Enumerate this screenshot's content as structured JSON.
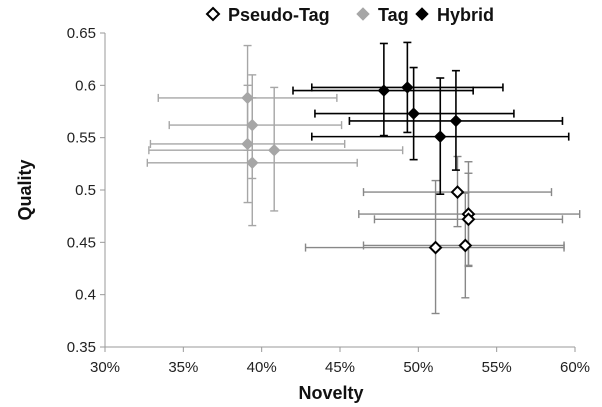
{
  "chart_data": {
    "type": "scatter",
    "xlabel": "Novelty",
    "ylabel": "Quality",
    "xlim": [
      0.3,
      0.6
    ],
    "ylim": [
      0.35,
      0.65
    ],
    "xticks": [
      0.3,
      0.35,
      0.4,
      0.45,
      0.5,
      0.55,
      0.6
    ],
    "xtick_labels": [
      "30%",
      "35%",
      "40%",
      "45%",
      "50%",
      "55%",
      "60%"
    ],
    "yticks": [
      0.35,
      0.4,
      0.45,
      0.5,
      0.55,
      0.6,
      0.65
    ],
    "ytick_labels": [
      "0.35",
      "0.4",
      "0.45",
      "0.5",
      "0.55",
      "0.6",
      "0.65"
    ],
    "grid": false,
    "legend_position": "top",
    "error_bars": true,
    "series": [
      {
        "name": "Pseudo-Tag",
        "marker": "open-diamond",
        "color": "#888888",
        "points": [
          {
            "x": 0.525,
            "y": 0.498,
            "xerr": [
              0.465,
              0.585
            ],
            "yerr": [
              0.465,
              0.532
            ]
          },
          {
            "x": 0.532,
            "y": 0.477,
            "xerr": [
              0.462,
              0.603
            ],
            "yerr": [
              0.428,
              0.527
            ]
          },
          {
            "x": 0.532,
            "y": 0.472,
            "xerr": [
              0.472,
              0.592
            ],
            "yerr": [
              0.427,
              0.516
            ]
          },
          {
            "x": 0.53,
            "y": 0.447,
            "xerr": [
              0.465,
              0.593
            ],
            "yerr": [
              0.397,
              0.497
            ]
          },
          {
            "x": 0.511,
            "y": 0.445,
            "xerr": [
              0.428,
              0.593
            ],
            "yerr": [
              0.382,
              0.509
            ]
          }
        ]
      },
      {
        "name": "Tag",
        "marker": "filled-diamond",
        "color": "#a6a6a6",
        "points": [
          {
            "x": 0.391,
            "y": 0.588,
            "xerr": [
              0.334,
              0.448
            ],
            "yerr": [
              0.538,
              0.638
            ]
          },
          {
            "x": 0.394,
            "y": 0.562,
            "xerr": [
              0.341,
              0.451
            ],
            "yerr": [
              0.511,
              0.61
            ]
          },
          {
            "x": 0.391,
            "y": 0.544,
            "xerr": [
              0.329,
              0.453
            ],
            "yerr": [
              0.488,
              0.6
            ]
          },
          {
            "x": 0.408,
            "y": 0.538,
            "xerr": [
              0.328,
              0.49
            ],
            "yerr": [
              0.48,
              0.598
            ]
          },
          {
            "x": 0.394,
            "y": 0.526,
            "xerr": [
              0.327,
              0.461
            ],
            "yerr": [
              0.466,
              0.588
            ]
          }
        ]
      },
      {
        "name": "Hybrid",
        "marker": "filled-diamond",
        "color": "#000000",
        "points": [
          {
            "x": 0.493,
            "y": 0.598,
            "xerr": [
              0.432,
              0.554
            ],
            "yerr": [
              0.555,
              0.641
            ]
          },
          {
            "x": 0.478,
            "y": 0.595,
            "xerr": [
              0.42,
              0.535
            ],
            "yerr": [
              0.552,
              0.64
            ]
          },
          {
            "x": 0.497,
            "y": 0.573,
            "xerr": [
              0.434,
              0.561
            ],
            "yerr": [
              0.529,
              0.617
            ]
          },
          {
            "x": 0.524,
            "y": 0.566,
            "xerr": [
              0.456,
              0.592
            ],
            "yerr": [
              0.519,
              0.614
            ]
          },
          {
            "x": 0.514,
            "y": 0.551,
            "xerr": [
              0.432,
              0.596
            ],
            "yerr": [
              0.496,
              0.607
            ]
          }
        ]
      }
    ]
  }
}
